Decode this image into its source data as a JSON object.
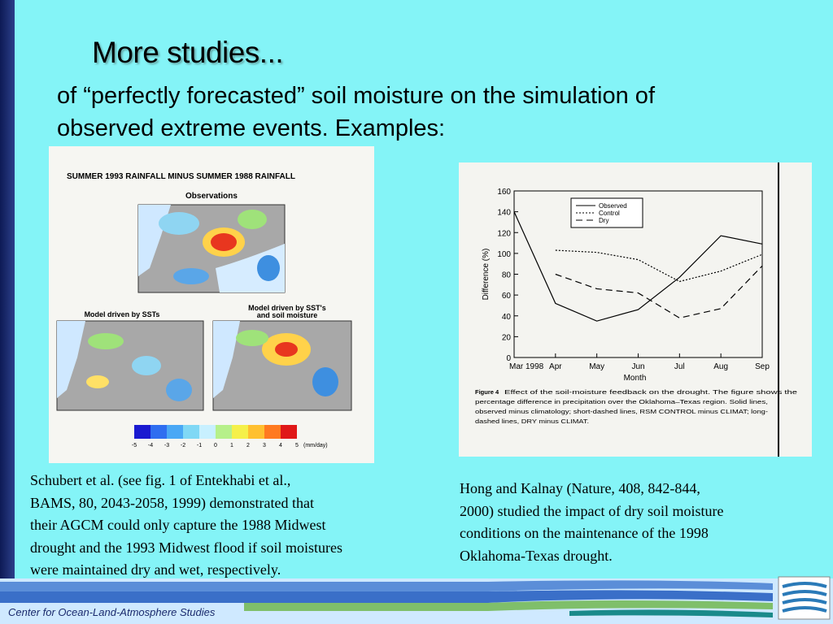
{
  "slide": {
    "title": "More studies...",
    "subtitle_lines": [
      "of “perfectly forecasted” soil moisture on the simulation of",
      "observed extreme events.  Examples:"
    ],
    "left_caption_lines": [
      "Schubert et al. (see fig. 1 of Entekhabi et al.,",
      "BAMS, 80, 2043-2058, 1999) demonstrated that",
      "their AGCM could only capture the 1988 Midwest",
      "drought and the 1993 Midwest flood if soil moistures",
      "were maintained dry and wet, respectively."
    ],
    "right_caption_lines": [
      "Hong and Kalnay (Nature, 408, 842-844,",
      "2000) studied the impact of dry soil moisture",
      "conditions on the maintenance of the 1998",
      "Oklahoma-Texas drought."
    ],
    "footer": "Center for Ocean-Land-Atmosphere Studies"
  },
  "left_figure": {
    "title": "SUMMER 1993 RAINFALL MINUS SUMMER 1988 RAINFALL",
    "panel_top": "Observations",
    "panel_left": "Model driven by SSTs",
    "panel_right_lines": [
      "Model driven by SST's",
      "and soil moisture"
    ],
    "colorbar_ticks": [
      -5,
      -4,
      -3,
      -2,
      -1,
      0,
      1,
      2,
      3,
      4,
      5
    ],
    "colorbar_unit": "(mm/day)"
  },
  "right_figure": {
    "type": "line",
    "ylabel": "Difference (%)",
    "xlabel": "Month",
    "categories": [
      "Mar 1998",
      "Apr",
      "May",
      "Jun",
      "Jul",
      "Aug",
      "Sep"
    ],
    "ylim": [
      0,
      160
    ],
    "yticks": [
      0,
      20,
      40,
      60,
      80,
      100,
      120,
      140,
      160
    ],
    "series": [
      {
        "name": "Observed",
        "color": "#000000",
        "line_style": "solid",
        "values": [
          140,
          52,
          35,
          46,
          77,
          117,
          109
        ]
      },
      {
        "name": "Control",
        "color": "#000000",
        "line_style": "short-dashed",
        "values": [
          null,
          103,
          101,
          94,
          73,
          83,
          99
        ]
      },
      {
        "name": "Dry",
        "color": "#000000",
        "line_style": "long-dashed",
        "values": [
          null,
          80,
          66,
          62,
          38,
          47,
          88
        ]
      }
    ],
    "caption_label": "Figure 4",
    "caption_lines": [
      "Effect of the soil-moisture feedback on the drought. The figure shows the",
      "percentage difference in precipitation over the Oklahoma–Texas region. Solid lines,",
      "observed minus climatology; short-dashed lines, RSM CONTROL minus CLIMAT; long-",
      "dashed lines, DRY minus CLIMAT."
    ]
  }
}
